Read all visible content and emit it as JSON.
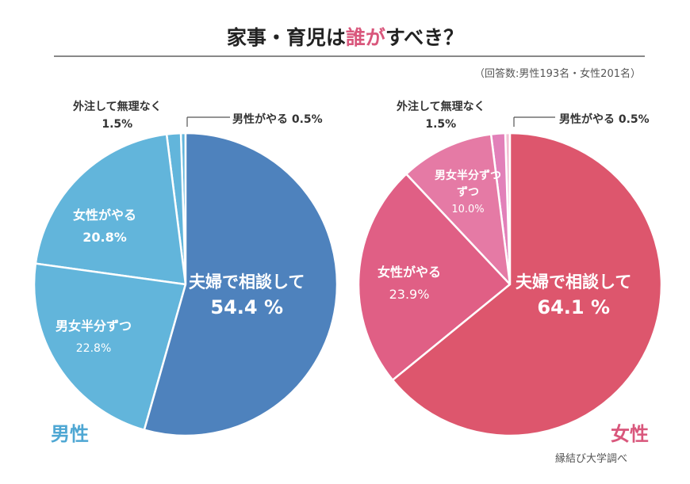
{
  "title": {
    "part1": "家事・育児は",
    "highlight": "誰が",
    "part2": "すべき？"
  },
  "note": "（回答数:男性193名・女性201名）",
  "credit": "縁結び大学調べ",
  "chart_data": [
    {
      "type": "pie",
      "name": "男性",
      "start": "12 o'clock",
      "direction": "clockwise",
      "slices": [
        {
          "label": "夫婦で相談して",
          "value": 54.4,
          "value_text": "54.4 %",
          "color": "#4e82bd"
        },
        {
          "label": "男女半分ずつ",
          "value": 22.8,
          "value_text": "22.8%",
          "color": "#62b5db"
        },
        {
          "label": "女性がやる",
          "value": 20.8,
          "value_text": "20.8%",
          "color": "#62b5db"
        },
        {
          "label": "外注して無理なく",
          "value": 1.5,
          "value_text": "1.5%",
          "color": "#62b5db"
        },
        {
          "label": "男性がやる",
          "value": 0.5,
          "value_text": "0.5%",
          "color": "#62b5db"
        }
      ]
    },
    {
      "type": "pie",
      "name": "女性",
      "start": "12 o'clock",
      "direction": "clockwise",
      "slices": [
        {
          "label": "夫婦で相談して",
          "value": 64.1,
          "value_text": "64.1 %",
          "color": "#dd566d"
        },
        {
          "label": "女性がやる",
          "value": 23.9,
          "value_text": "23.9%",
          "color": "#e05f85"
        },
        {
          "label": "男女半分ずつ",
          "value": 10.0,
          "value_text": "10.0%",
          "color": "#e57aa5"
        },
        {
          "label": "外注して無理なく",
          "value": 1.5,
          "value_text": "1.5%",
          "color": "#e280b9"
        },
        {
          "label": "男性がやる",
          "value": 0.5,
          "value_text": "0.5%",
          "color": "#f3bfd3"
        }
      ]
    }
  ],
  "colors": {
    "male_label": "#4ea7d3",
    "female_label": "#d9577c"
  }
}
